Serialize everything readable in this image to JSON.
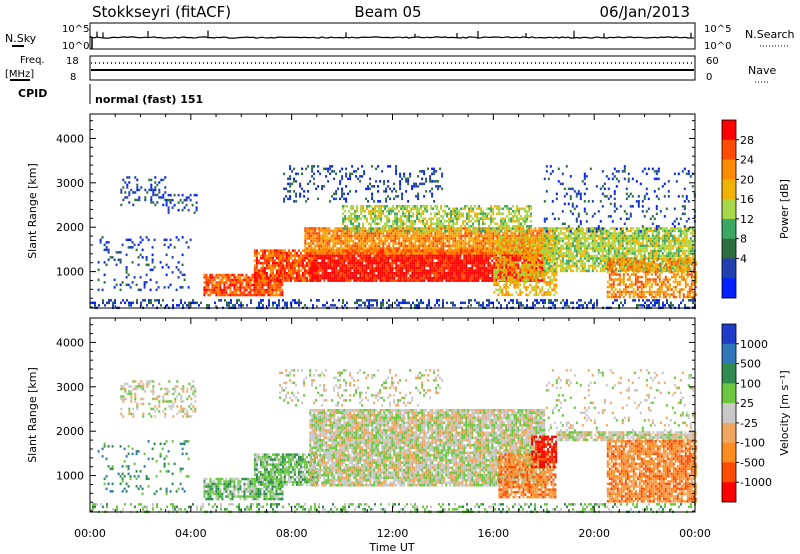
{
  "header": {
    "station": "Stokkseyri (fitACF)",
    "beam": "Beam 05",
    "date": "06/Jan/2013"
  },
  "panels": {
    "nsky": {
      "left_label": "N.Sky",
      "ticks_left": [
        "10^5",
        "10^0"
      ],
      "ticks_right": [
        "10^5",
        "10^0"
      ],
      "right_label": "N.Search"
    },
    "freq": {
      "label_top": "Freq.",
      "label_unit": "[MHz]",
      "ticks_left": [
        "18",
        "8"
      ],
      "ticks_right": [
        "60",
        "0"
      ],
      "right_label": "Nave"
    },
    "cpid": {
      "left_label": "CPID",
      "text": "normal (fast) 151"
    }
  },
  "colors": {
    "sky_trace": "#000000",
    "frame": "#000000"
  },
  "chart_data": [
    {
      "type": "heatmap",
      "name": "power",
      "ylabel": "Slant Range [km]",
      "ylim": [
        180,
        4550
      ],
      "yticks": [
        1000,
        2000,
        3000,
        4000
      ],
      "xlim": [
        0,
        24
      ],
      "colorbar": {
        "label": "Power [dB]",
        "ticks": [
          "28",
          "24",
          "20",
          "16",
          "12",
          "8",
          "4"
        ],
        "colors": [
          "#ff0000",
          "#ff4a00",
          "#ff8c00",
          "#f2b200",
          "#a8d84a",
          "#3aa860",
          "#2d6e3e",
          "#2040b0",
          "#0020ff"
        ]
      },
      "regions": [
        {
          "t0": 0.0,
          "t1": 24.0,
          "r0": 200,
          "r1": 380,
          "level": 7,
          "density": 0.35
        },
        {
          "t0": 0.3,
          "t1": 4.0,
          "r0": 600,
          "r1": 1800,
          "level": 7,
          "density": 0.12
        },
        {
          "t0": 1.2,
          "t1": 3.0,
          "r0": 2500,
          "r1": 3150,
          "level": 7,
          "density": 0.25
        },
        {
          "t0": 3.0,
          "t1": 4.2,
          "r0": 2350,
          "r1": 2750,
          "level": 7,
          "density": 0.3
        },
        {
          "t0": 4.5,
          "t1": 7.6,
          "r0": 450,
          "r1": 950,
          "level": 1,
          "density": 0.85
        },
        {
          "t0": 6.5,
          "t1": 9.0,
          "r0": 800,
          "r1": 1500,
          "level": 1,
          "density": 0.85
        },
        {
          "t0": 8.7,
          "t1": 18.0,
          "r0": 800,
          "r1": 1500,
          "level": 0,
          "density": 0.95
        },
        {
          "t0": 8.5,
          "t1": 18.2,
          "r0": 1400,
          "r1": 2000,
          "level": 2,
          "density": 0.9
        },
        {
          "t0": 10.0,
          "t1": 17.5,
          "r0": 1900,
          "r1": 2500,
          "level": 4,
          "density": 0.6
        },
        {
          "t0": 7.5,
          "t1": 14.0,
          "r0": 2600,
          "r1": 3400,
          "level": 7,
          "density": 0.2
        },
        {
          "t0": 16.0,
          "t1": 18.5,
          "r0": 500,
          "r1": 1800,
          "level": 3,
          "density": 0.6
        },
        {
          "t0": 18.0,
          "t1": 24.0,
          "r0": 1000,
          "r1": 2000,
          "level": 4,
          "density": 0.8
        },
        {
          "t0": 20.5,
          "t1": 24.0,
          "r0": 400,
          "r1": 1300,
          "level": 2,
          "density": 0.6
        },
        {
          "t0": 18.0,
          "t1": 24.0,
          "r0": 1900,
          "r1": 3400,
          "level": 7,
          "density": 0.12
        }
      ]
    },
    {
      "type": "heatmap",
      "name": "velocity",
      "ylabel": "Slant Range [km]",
      "xlabel": "Time UT",
      "ylim": [
        180,
        4550
      ],
      "yticks": [
        1000,
        2000,
        3000,
        4000
      ],
      "xlim": [
        0,
        24
      ],
      "xticks": [
        "00:00",
        "04:00",
        "08:00",
        "12:00",
        "16:00",
        "20:00",
        "00:00"
      ],
      "colorbar": {
        "label": "Velocity [m s⁻¹]",
        "ticks": [
          "1000",
          "500",
          "100",
          "25",
          "-25",
          "-100",
          "-500",
          "-1000"
        ],
        "colors": [
          "#1e3cc8",
          "#2e78b8",
          "#2e8c50",
          "#6ac840",
          "#c8c8c8",
          "#f0a860",
          "#ff8c1e",
          "#ff4a00",
          "#ff0000"
        ]
      },
      "regions": [
        {
          "t0": 0.0,
          "t1": 24.0,
          "r0": 200,
          "r1": 380,
          "level": 3,
          "density": 0.3
        },
        {
          "t0": 0.3,
          "t1": 4.0,
          "r0": 600,
          "r1": 1800,
          "level": 2,
          "density": 0.12
        },
        {
          "t0": 1.2,
          "t1": 4.2,
          "r0": 2350,
          "r1": 3150,
          "level": 4,
          "density": 0.3
        },
        {
          "t0": 4.5,
          "t1": 7.6,
          "r0": 450,
          "r1": 950,
          "level": 3,
          "density": 0.8
        },
        {
          "t0": 6.5,
          "t1": 9.0,
          "r0": 800,
          "r1": 1500,
          "level": 3,
          "density": 0.8
        },
        {
          "t0": 8.7,
          "t1": 18.0,
          "r0": 800,
          "r1": 2500,
          "level": 4,
          "density": 0.9
        },
        {
          "t0": 7.5,
          "t1": 14.0,
          "r0": 2600,
          "r1": 3400,
          "level": 4,
          "density": 0.2
        },
        {
          "t0": 16.2,
          "t1": 18.5,
          "r0": 500,
          "r1": 1500,
          "level": 6,
          "density": 0.8
        },
        {
          "t0": 17.5,
          "t1": 18.5,
          "r0": 1200,
          "r1": 1900,
          "level": 8,
          "density": 0.7
        },
        {
          "t0": 18.5,
          "t1": 24.0,
          "r0": 1800,
          "r1": 2000,
          "level": 4,
          "density": 0.8
        },
        {
          "t0": 20.5,
          "t1": 24.0,
          "r0": 400,
          "r1": 1800,
          "level": 6,
          "density": 0.85
        },
        {
          "t0": 18.0,
          "t1": 24.0,
          "r0": 2000,
          "r1": 3400,
          "level": 4,
          "density": 0.12
        }
      ]
    }
  ]
}
